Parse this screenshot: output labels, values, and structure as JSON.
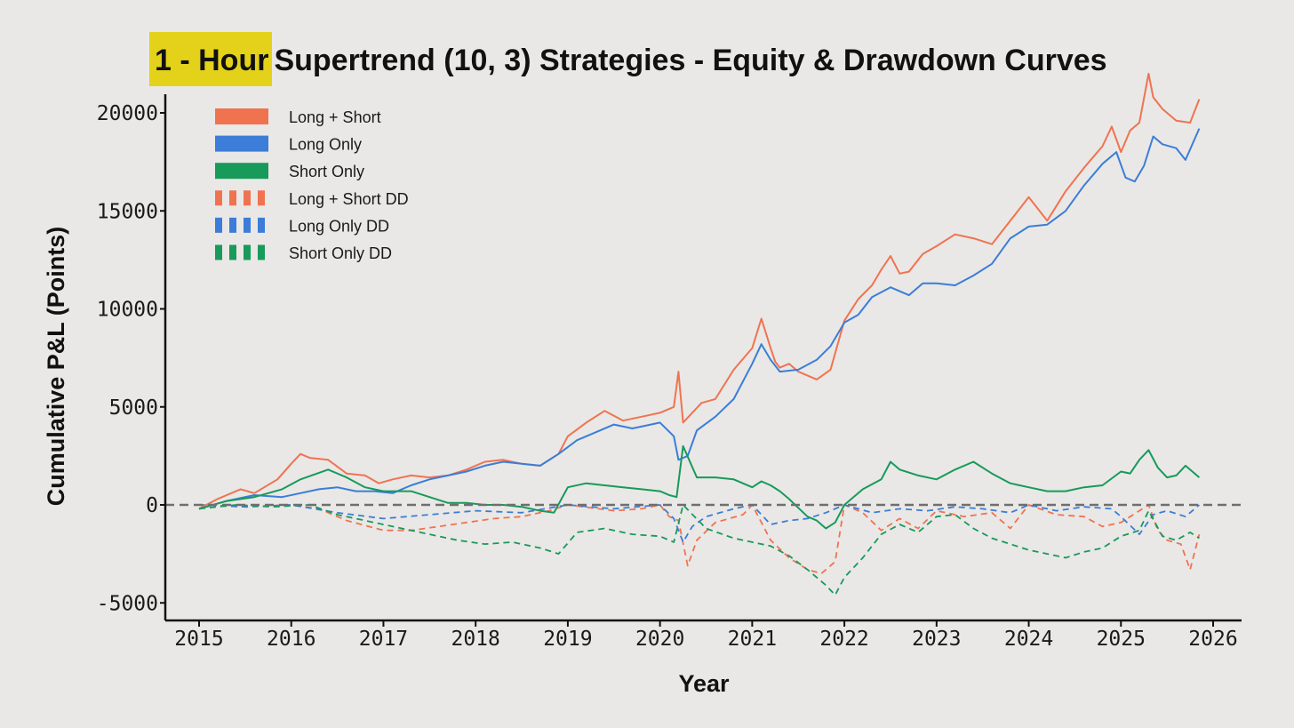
{
  "chart_data": {
    "type": "line",
    "title_highlight": "1 - Hour",
    "title_rest": "Supertrend (10, 3) Strategies - Equity & Drawdown Curves",
    "xlabel": "Year",
    "ylabel": "Cumulative P&L (Points)",
    "xlim": [
      2014.6,
      2026.35
    ],
    "ylim": [
      -5900,
      21000
    ],
    "xticks": [
      2015,
      2016,
      2017,
      2018,
      2019,
      2020,
      2021,
      2022,
      2023,
      2024,
      2025,
      2026
    ],
    "yticks": [
      -5000,
      0,
      5000,
      10000,
      15000,
      20000
    ],
    "zero_line": true,
    "grid": false,
    "legend_position": "upper-left",
    "series": [
      {
        "name": "Long + Short",
        "color": "#f07350",
        "style": "solid",
        "x": [
          2015.0,
          2015.2,
          2015.45,
          2015.6,
          2015.85,
          2016.0,
          2016.1,
          2016.2,
          2016.4,
          2016.6,
          2016.8,
          2016.95,
          2017.1,
          2017.3,
          2017.5,
          2017.7,
          2017.9,
          2018.1,
          2018.3,
          2018.5,
          2018.7,
          2018.9,
          2019.0,
          2019.2,
          2019.4,
          2019.6,
          2019.8,
          2020.0,
          2020.15,
          2020.2,
          2020.25,
          2020.35,
          2020.45,
          2020.6,
          2020.8,
          2021.0,
          2021.1,
          2021.2,
          2021.25,
          2021.3,
          2021.4,
          2021.5,
          2021.7,
          2021.85,
          2022.0,
          2022.15,
          2022.3,
          2022.4,
          2022.5,
          2022.6,
          2022.7,
          2022.85,
          2023.0,
          2023.2,
          2023.4,
          2023.6,
          2023.8,
          2024.0,
          2024.2,
          2024.4,
          2024.6,
          2024.8,
          2024.9,
          2025.0,
          2025.1,
          2025.2,
          2025.3,
          2025.35,
          2025.45,
          2025.6,
          2025.75,
          2025.85
        ],
        "y": [
          -200,
          300,
          800,
          600,
          1300,
          2100,
          2600,
          2400,
          2300,
          1600,
          1500,
          1100,
          1300,
          1500,
          1400,
          1500,
          1800,
          2200,
          2300,
          2100,
          2000,
          2600,
          3500,
          4200,
          4800,
          4300,
          4500,
          4700,
          5000,
          6800,
          4200,
          4700,
          5200,
          5400,
          6900,
          8000,
          9500,
          8000,
          7300,
          7000,
          7200,
          6800,
          6400,
          6900,
          9400,
          10500,
          11200,
          12000,
          12700,
          11800,
          11900,
          12800,
          13200,
          13800,
          13600,
          13300,
          14500,
          15700,
          14500,
          16000,
          17200,
          18300,
          19300,
          18000,
          19100,
          19500,
          22000,
          20800,
          20200,
          19600,
          19500,
          20700
        ]
      },
      {
        "name": "Long Only",
        "color": "#3b7dd8",
        "style": "solid",
        "x": [
          2015.0,
          2015.3,
          2015.6,
          2015.9,
          2016.1,
          2016.3,
          2016.5,
          2016.7,
          2016.9,
          2017.1,
          2017.3,
          2017.5,
          2017.7,
          2017.9,
          2018.1,
          2018.3,
          2018.5,
          2018.7,
          2018.9,
          2019.1,
          2019.3,
          2019.5,
          2019.7,
          2019.9,
          2020.0,
          2020.15,
          2020.2,
          2020.3,
          2020.4,
          2020.6,
          2020.8,
          2021.0,
          2021.1,
          2021.2,
          2021.3,
          2021.5,
          2021.7,
          2021.85,
          2022.0,
          2022.15,
          2022.3,
          2022.5,
          2022.7,
          2022.85,
          2023.0,
          2023.2,
          2023.4,
          2023.6,
          2023.8,
          2024.0,
          2024.2,
          2024.4,
          2024.6,
          2024.8,
          2024.95,
          2025.05,
          2025.15,
          2025.25,
          2025.35,
          2025.45,
          2025.6,
          2025.7,
          2025.85
        ],
        "y": [
          -200,
          200,
          500,
          400,
          600,
          800,
          900,
          700,
          700,
          600,
          1000,
          1300,
          1500,
          1700,
          2000,
          2200,
          2100,
          2000,
          2600,
          3300,
          3700,
          4100,
          3900,
          4100,
          4200,
          3500,
          2300,
          2500,
          3800,
          4500,
          5400,
          7200,
          8200,
          7400,
          6800,
          6900,
          7400,
          8100,
          9300,
          9700,
          10600,
          11100,
          10700,
          11300,
          11300,
          11200,
          11700,
          12300,
          13600,
          14200,
          14300,
          15000,
          16300,
          17400,
          18000,
          16700,
          16500,
          17300,
          18800,
          18400,
          18200,
          17600,
          19200
        ]
      },
      {
        "name": "Short Only",
        "color": "#179a5a",
        "style": "solid",
        "x": [
          2015.0,
          2015.3,
          2015.6,
          2015.9,
          2016.1,
          2016.4,
          2016.6,
          2016.8,
          2017.0,
          2017.3,
          2017.5,
          2017.7,
          2017.9,
          2018.1,
          2018.3,
          2018.5,
          2018.7,
          2018.85,
          2019.0,
          2019.2,
          2019.4,
          2019.6,
          2019.8,
          2020.0,
          2020.1,
          2020.18,
          2020.25,
          2020.4,
          2020.6,
          2020.8,
          2021.0,
          2021.1,
          2021.2,
          2021.3,
          2021.4,
          2021.6,
          2021.7,
          2021.8,
          2021.9,
          2022.0,
          2022.2,
          2022.4,
          2022.5,
          2022.6,
          2022.8,
          2023.0,
          2023.2,
          2023.4,
          2023.6,
          2023.8,
          2024.0,
          2024.2,
          2024.4,
          2024.6,
          2024.8,
          2025.0,
          2025.1,
          2025.2,
          2025.3,
          2025.4,
          2025.5,
          2025.6,
          2025.7,
          2025.85
        ],
        "y": [
          -200,
          200,
          400,
          800,
          1300,
          1800,
          1400,
          900,
          700,
          700,
          400,
          100,
          100,
          0,
          0,
          -100,
          -300,
          -400,
          900,
          1100,
          1000,
          900,
          800,
          700,
          500,
          400,
          3000,
          1400,
          1400,
          1300,
          900,
          1200,
          1000,
          700,
          300,
          -600,
          -800,
          -1200,
          -900,
          0,
          800,
          1300,
          2200,
          1800,
          1500,
          1300,
          1800,
          2200,
          1600,
          1100,
          900,
          700,
          700,
          900,
          1000,
          1700,
          1600,
          2300,
          2800,
          1900,
          1400,
          1500,
          2000,
          1400
        ]
      },
      {
        "name": "Long + Short DD",
        "color": "#f07350",
        "style": "dashed",
        "x": [
          2015.0,
          2015.5,
          2016.0,
          2016.3,
          2016.6,
          2017.0,
          2017.3,
          2017.6,
          2017.9,
          2018.2,
          2018.5,
          2018.8,
          2019.0,
          2019.5,
          2019.8,
          2020.0,
          2020.1,
          2020.2,
          2020.3,
          2020.4,
          2020.6,
          2020.9,
          2021.0,
          2021.2,
          2021.4,
          2021.6,
          2021.75,
          2021.9,
          2022.0,
          2022.2,
          2022.4,
          2022.6,
          2022.8,
          2023.0,
          2023.3,
          2023.6,
          2023.8,
          2024.0,
          2024.3,
          2024.6,
          2024.8,
          2025.0,
          2025.2,
          2025.3,
          2025.4,
          2025.5,
          2025.65,
          2025.75,
          2025.85
        ],
        "y": [
          0,
          -100,
          0,
          -200,
          -800,
          -1300,
          -1300,
          -1100,
          -900,
          -700,
          -600,
          -300,
          0,
          -300,
          -200,
          0,
          -600,
          -800,
          -3100,
          -1800,
          -900,
          -500,
          0,
          -1800,
          -2700,
          -3300,
          -3500,
          -2900,
          0,
          -400,
          -1300,
          -700,
          -1200,
          -300,
          -600,
          -400,
          -1200,
          0,
          -500,
          -600,
          -1100,
          -900,
          -300,
          0,
          -1300,
          -1800,
          -2000,
          -3300,
          -1500
        ]
      },
      {
        "name": "Long Only DD",
        "color": "#3b7dd8",
        "style": "dashed",
        "x": [
          2015.0,
          2015.5,
          2016.0,
          2016.5,
          2017.0,
          2017.5,
          2018.0,
          2018.5,
          2019.0,
          2019.5,
          2020.0,
          2020.15,
          2020.25,
          2020.35,
          2020.5,
          2020.8,
          2021.0,
          2021.2,
          2021.4,
          2021.6,
          2021.8,
          2022.0,
          2022.3,
          2022.6,
          2022.9,
          2023.2,
          2023.5,
          2023.8,
          2024.0,
          2024.3,
          2024.6,
          2024.9,
          2025.0,
          2025.2,
          2025.35,
          2025.5,
          2025.7,
          2025.85
        ],
        "y": [
          0,
          -100,
          0,
          -400,
          -700,
          -500,
          -300,
          -400,
          0,
          -200,
          0,
          -700,
          -1900,
          -1100,
          -600,
          -200,
          0,
          -1000,
          -800,
          -700,
          -400,
          0,
          -400,
          -200,
          -300,
          -100,
          -200,
          -400,
          0,
          -300,
          -100,
          -200,
          -600,
          -1500,
          -500,
          -300,
          -600,
          0
        ]
      },
      {
        "name": "Short Only DD",
        "color": "#179a5a",
        "style": "dashed",
        "x": [
          2015.0,
          2015.4,
          2015.8,
          2016.2,
          2016.5,
          2016.8,
          2017.1,
          2017.5,
          2017.8,
          2018.1,
          2018.4,
          2018.7,
          2018.9,
          2019.1,
          2019.4,
          2019.7,
          2020.0,
          2020.15,
          2020.25,
          2020.5,
          2020.8,
          2021.0,
          2021.2,
          2021.4,
          2021.6,
          2021.8,
          2021.9,
          2022.0,
          2022.2,
          2022.4,
          2022.6,
          2022.8,
          2023.0,
          2023.2,
          2023.4,
          2023.6,
          2023.8,
          2024.0,
          2024.2,
          2024.4,
          2024.6,
          2024.8,
          2025.0,
          2025.2,
          2025.3,
          2025.45,
          2025.6,
          2025.75,
          2025.85
        ],
        "y": [
          -200,
          0,
          -100,
          0,
          -500,
          -800,
          -1100,
          -1500,
          -1800,
          -2000,
          -1900,
          -2200,
          -2500,
          -1400,
          -1200,
          -1500,
          -1600,
          -1900,
          0,
          -1200,
          -1700,
          -1900,
          -2100,
          -2600,
          -3300,
          -4100,
          -4600,
          -3700,
          -2700,
          -1500,
          -1000,
          -1400,
          -600,
          -500,
          -1200,
          -1700,
          -2000,
          -2300,
          -2500,
          -2700,
          -2400,
          -2200,
          -1600,
          -1300,
          -300,
          -1600,
          -1800,
          -1400,
          -1700
        ]
      }
    ]
  }
}
